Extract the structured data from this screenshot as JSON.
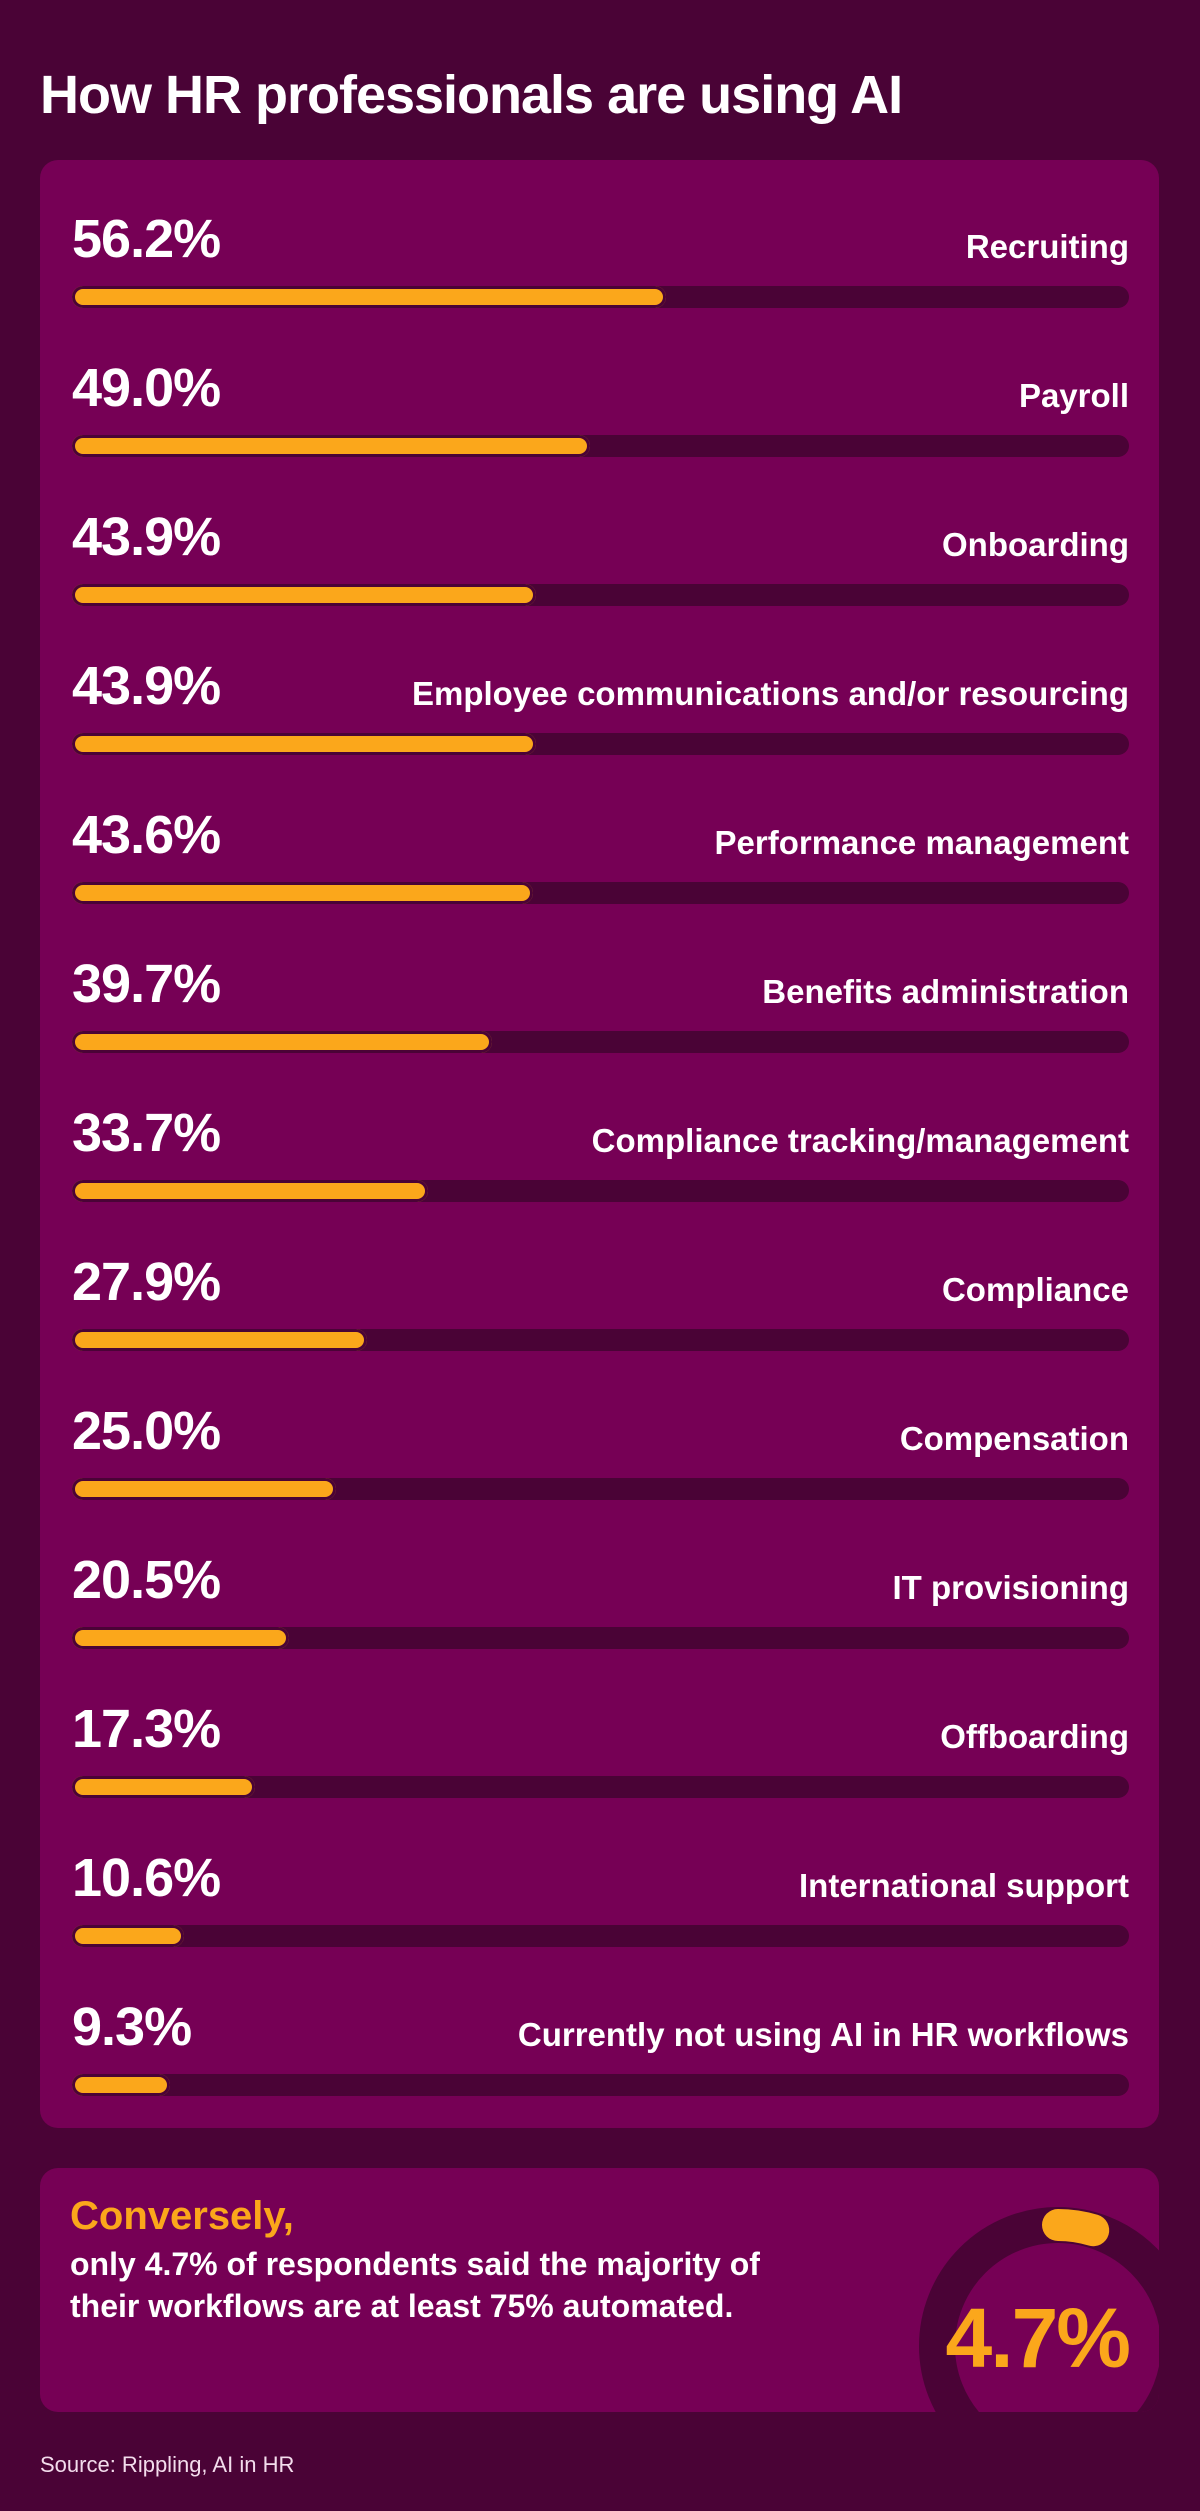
{
  "title": "How HR professionals are using AI",
  "colors": {
    "background": "#4a0336",
    "panel": "#760055",
    "accent": "#fba71b",
    "text": "#ffffff"
  },
  "chart_data": {
    "type": "bar",
    "orientation": "horizontal",
    "title": "How HR professionals are using AI",
    "ylim": [
      0,
      100
    ],
    "categories": [
      "Recruiting",
      "Payroll",
      "Onboarding",
      "Employee communications and/or resourcing",
      "Performance management",
      "Benefits administration",
      "Compliance tracking/management",
      "Compliance",
      "Compensation",
      "IT provisioning",
      "Offboarding",
      "International support",
      "Currently not using AI in HR workflows"
    ],
    "values": [
      56.2,
      49.0,
      43.9,
      43.9,
      43.6,
      39.7,
      33.7,
      27.9,
      25.0,
      20.5,
      17.3,
      10.6,
      9.3
    ],
    "value_labels": [
      "56.2%",
      "49.0%",
      "43.9%",
      "43.9%",
      "43.6%",
      "39.7%",
      "33.7%",
      "27.9%",
      "25.0%",
      "20.5%",
      "17.3%",
      "10.6%",
      "9.3%"
    ]
  },
  "callout": {
    "heading": "Conversely,",
    "body": "only 4.7% of respondents said the majority of their workflows are at least 75% automated.",
    "value": 4.7,
    "value_label": "4.7%"
  },
  "source": "Source: Rippling, AI in HR"
}
